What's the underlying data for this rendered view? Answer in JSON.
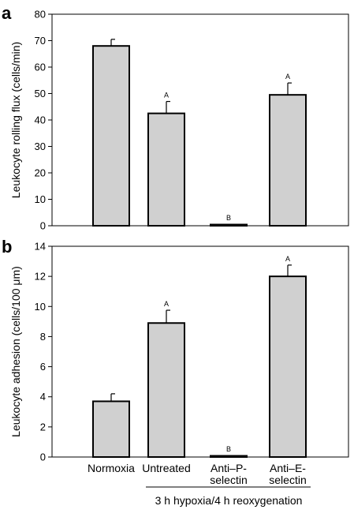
{
  "chart_data": [
    {
      "type": "bar",
      "panel": "a",
      "ylabel": "Leukocyte rolling flux (cells/min)",
      "ylim": [
        0,
        80
      ],
      "yticks": [
        0,
        10,
        20,
        30,
        40,
        50,
        60,
        70,
        80
      ],
      "categories": [
        "Normoxia",
        "Untreated",
        "Anti–P-selectin",
        "Anti–E-selectin"
      ],
      "values": [
        68,
        42.5,
        0.3,
        49.5
      ],
      "errors": [
        2.5,
        4.5,
        0,
        4.5
      ],
      "significance": [
        "",
        "A",
        "B",
        "A"
      ],
      "bar_color": "#d0d0d0"
    },
    {
      "type": "bar",
      "panel": "b",
      "ylabel": "Leukocyte adhesion (cells/100 μm)",
      "ylim": [
        0,
        14
      ],
      "yticks": [
        0,
        2,
        4,
        6,
        8,
        10,
        12,
        14
      ],
      "categories": [
        "Normoxia",
        "Untreated",
        "Anti–P-selectin",
        "Anti–E-selectin"
      ],
      "category_lines": [
        [
          "Normoxia"
        ],
        [
          "Untreated"
        ],
        [
          "Anti–P-",
          "selectin"
        ],
        [
          "Anti–E-",
          "selectin"
        ]
      ],
      "values": [
        3.7,
        8.9,
        0.05,
        12.0
      ],
      "errors": [
        0.5,
        0.85,
        0,
        0.75
      ],
      "significance": [
        "",
        "A",
        "B",
        "A"
      ],
      "bar_color": "#d0d0d0",
      "group_label": "3 h hypoxia/4 h reoxygenation"
    }
  ]
}
